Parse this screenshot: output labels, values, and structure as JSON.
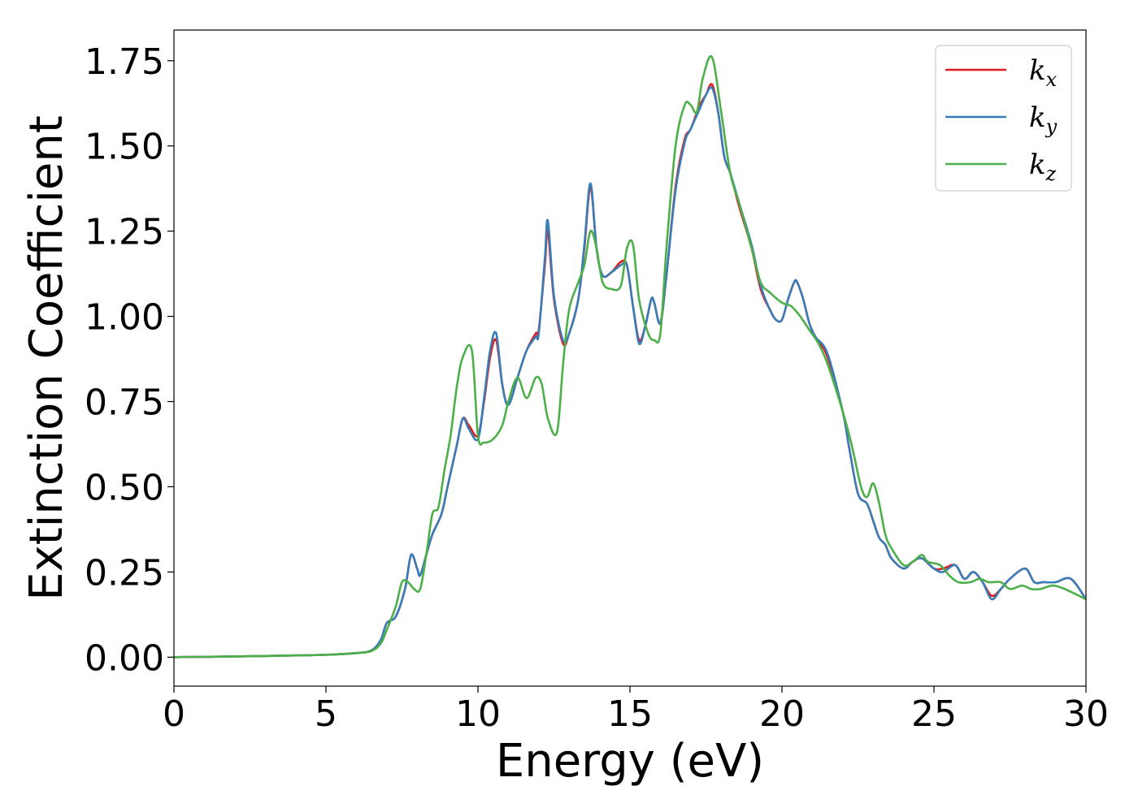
{
  "chart_data": {
    "type": "line",
    "title": "",
    "xlabel": "Energy (eV)",
    "ylabel": "Extinction Coefficient",
    "xlim": [
      0,
      30
    ],
    "ylim": [
      -0.085,
      1.84
    ],
    "xticks": [
      0,
      5,
      10,
      15,
      20,
      25,
      30
    ],
    "xtick_labels": [
      "0",
      "5",
      "10",
      "15",
      "20",
      "25",
      "30"
    ],
    "yticks": [
      0.0,
      0.25,
      0.5,
      0.75,
      1.0,
      1.25,
      1.5,
      1.75
    ],
    "ytick_labels": [
      "0.00",
      "0.25",
      "0.50",
      "0.75",
      "1.00",
      "1.25",
      "1.50",
      "1.75"
    ],
    "grid": false,
    "legend_position": "top-right",
    "series": [
      {
        "name": "k_x",
        "legend_base": "k",
        "legend_sub": "x",
        "color": "#e41a1c",
        "x": [
          0,
          2,
          4,
          5,
          6,
          6.5,
          6.8,
          7.0,
          7.3,
          7.6,
          7.8,
          8.0,
          8.1,
          8.3,
          8.5,
          8.8,
          9.0,
          9.3,
          9.5,
          9.7,
          10.0,
          10.2,
          10.4,
          10.6,
          10.8,
          11.0,
          11.3,
          11.6,
          11.9,
          12.0,
          12.2,
          12.3,
          12.5,
          12.8,
          13.0,
          13.3,
          13.5,
          13.7,
          13.9,
          14.1,
          14.4,
          14.7,
          14.9,
          15.1,
          15.3,
          15.5,
          15.7,
          15.8,
          16.0,
          16.2,
          16.5,
          16.8,
          17.0,
          17.3,
          17.5,
          17.7,
          17.9,
          18.1,
          18.3,
          18.6,
          19.0,
          19.3,
          19.6,
          19.8,
          20.0,
          20.2,
          20.4,
          20.5,
          20.7,
          20.9,
          21.1,
          21.5,
          22.0,
          22.2,
          22.5,
          22.8,
          23.0,
          23.2,
          23.4,
          23.6,
          24.0,
          24.3,
          24.6,
          25.0,
          25.3,
          25.7,
          26.0,
          26.3,
          26.6,
          26.9,
          27.2,
          27.5,
          28.0,
          28.3,
          28.6,
          29.0,
          29.5,
          30.0
        ],
        "y": [
          0.0,
          0.002,
          0.005,
          0.007,
          0.012,
          0.02,
          0.05,
          0.1,
          0.12,
          0.2,
          0.3,
          0.26,
          0.24,
          0.3,
          0.36,
          0.42,
          0.5,
          0.62,
          0.7,
          0.68,
          0.65,
          0.75,
          0.88,
          0.93,
          0.8,
          0.74,
          0.82,
          0.9,
          0.95,
          0.96,
          1.15,
          1.25,
          1.05,
          0.92,
          0.95,
          1.05,
          1.2,
          1.38,
          1.2,
          1.12,
          1.13,
          1.16,
          1.15,
          1.03,
          0.93,
          0.97,
          1.05,
          1.04,
          0.98,
          1.12,
          1.38,
          1.52,
          1.55,
          1.62,
          1.65,
          1.68,
          1.6,
          1.47,
          1.42,
          1.32,
          1.2,
          1.08,
          1.02,
          0.99,
          0.99,
          1.05,
          1.1,
          1.1,
          1.05,
          0.98,
          0.94,
          0.88,
          0.72,
          0.62,
          0.48,
          0.45,
          0.4,
          0.35,
          0.33,
          0.29,
          0.26,
          0.28,
          0.29,
          0.26,
          0.26,
          0.27,
          0.23,
          0.25,
          0.22,
          0.18,
          0.2,
          0.23,
          0.26,
          0.22,
          0.22,
          0.22,
          0.23,
          0.17
        ]
      },
      {
        "name": "k_y",
        "legend_base": "k",
        "legend_sub": "y",
        "color": "#377eb8",
        "x": [
          0,
          2,
          4,
          5,
          6,
          6.5,
          6.8,
          7.0,
          7.3,
          7.6,
          7.8,
          8.0,
          8.1,
          8.3,
          8.5,
          8.8,
          9.0,
          9.3,
          9.5,
          9.7,
          10.0,
          10.2,
          10.4,
          10.6,
          10.8,
          11.0,
          11.3,
          11.6,
          11.9,
          12.0,
          12.2,
          12.3,
          12.5,
          12.8,
          13.0,
          13.3,
          13.5,
          13.7,
          13.9,
          14.1,
          14.4,
          14.7,
          14.9,
          15.1,
          15.3,
          15.5,
          15.7,
          15.8,
          16.0,
          16.2,
          16.5,
          16.8,
          17.0,
          17.3,
          17.5,
          17.7,
          17.9,
          18.1,
          18.3,
          18.6,
          19.0,
          19.3,
          19.6,
          19.8,
          20.0,
          20.2,
          20.4,
          20.5,
          20.7,
          20.9,
          21.1,
          21.5,
          22.0,
          22.2,
          22.5,
          22.8,
          23.0,
          23.2,
          23.4,
          23.6,
          24.0,
          24.3,
          24.6,
          25.0,
          25.3,
          25.7,
          26.0,
          26.3,
          26.6,
          26.9,
          27.2,
          27.5,
          28.0,
          28.3,
          28.6,
          29.0,
          29.5,
          30.0
        ],
        "y": [
          0.0,
          0.002,
          0.005,
          0.007,
          0.012,
          0.02,
          0.05,
          0.1,
          0.12,
          0.2,
          0.3,
          0.26,
          0.24,
          0.3,
          0.36,
          0.42,
          0.5,
          0.62,
          0.7,
          0.67,
          0.64,
          0.76,
          0.9,
          0.95,
          0.8,
          0.74,
          0.82,
          0.9,
          0.94,
          0.95,
          1.17,
          1.28,
          1.06,
          0.93,
          0.95,
          1.05,
          1.21,
          1.39,
          1.2,
          1.12,
          1.13,
          1.15,
          1.15,
          1.03,
          0.92,
          0.97,
          1.05,
          1.04,
          0.98,
          1.12,
          1.37,
          1.51,
          1.55,
          1.61,
          1.65,
          1.67,
          1.6,
          1.47,
          1.42,
          1.33,
          1.21,
          1.09,
          1.02,
          0.99,
          0.99,
          1.05,
          1.1,
          1.1,
          1.05,
          0.98,
          0.94,
          0.89,
          0.72,
          0.62,
          0.48,
          0.45,
          0.4,
          0.35,
          0.33,
          0.29,
          0.26,
          0.28,
          0.29,
          0.26,
          0.25,
          0.27,
          0.23,
          0.25,
          0.22,
          0.17,
          0.2,
          0.23,
          0.26,
          0.22,
          0.22,
          0.22,
          0.23,
          0.17
        ]
      },
      {
        "name": "k_z",
        "legend_base": "k",
        "legend_sub": "z",
        "color": "#4daf4a",
        "x": [
          0,
          2,
          4,
          5,
          6,
          6.5,
          6.8,
          7.0,
          7.3,
          7.5,
          7.7,
          7.9,
          8.1,
          8.3,
          8.5,
          8.7,
          8.9,
          9.1,
          9.3,
          9.5,
          9.8,
          10.0,
          10.2,
          10.5,
          10.8,
          11.0,
          11.3,
          11.6,
          11.9,
          12.1,
          12.3,
          12.6,
          12.8,
          13.0,
          13.3,
          13.5,
          13.7,
          13.9,
          14.1,
          14.4,
          14.7,
          14.9,
          15.1,
          15.3,
          15.6,
          15.8,
          16.0,
          16.2,
          16.5,
          16.8,
          17.0,
          17.2,
          17.4,
          17.7,
          18.0,
          18.3,
          18.6,
          19.0,
          19.3,
          19.6,
          20.0,
          20.3,
          20.6,
          20.9,
          21.2,
          21.5,
          22.0,
          22.3,
          22.6,
          22.8,
          23.0,
          23.2,
          23.4,
          23.6,
          24.0,
          24.3,
          24.6,
          24.8,
          25.2,
          25.5,
          25.8,
          26.2,
          26.5,
          26.8,
          27.2,
          27.5,
          27.9,
          28.2,
          28.5,
          28.9,
          29.3,
          30.0
        ],
        "y": [
          0.0,
          0.002,
          0.005,
          0.007,
          0.012,
          0.018,
          0.04,
          0.08,
          0.15,
          0.22,
          0.22,
          0.2,
          0.2,
          0.3,
          0.42,
          0.44,
          0.55,
          0.65,
          0.79,
          0.88,
          0.9,
          0.65,
          0.63,
          0.64,
          0.68,
          0.75,
          0.82,
          0.76,
          0.82,
          0.8,
          0.7,
          0.66,
          0.86,
          1.02,
          1.1,
          1.15,
          1.25,
          1.2,
          1.1,
          1.08,
          1.09,
          1.2,
          1.21,
          1.05,
          0.95,
          0.93,
          0.95,
          1.2,
          1.5,
          1.62,
          1.62,
          1.6,
          1.7,
          1.76,
          1.6,
          1.42,
          1.33,
          1.2,
          1.1,
          1.07,
          1.04,
          1.03,
          1.0,
          0.96,
          0.92,
          0.86,
          0.72,
          0.62,
          0.5,
          0.47,
          0.51,
          0.45,
          0.36,
          0.32,
          0.27,
          0.28,
          0.3,
          0.28,
          0.27,
          0.24,
          0.22,
          0.22,
          0.23,
          0.22,
          0.22,
          0.2,
          0.21,
          0.2,
          0.2,
          0.21,
          0.2,
          0.17
        ]
      }
    ]
  }
}
